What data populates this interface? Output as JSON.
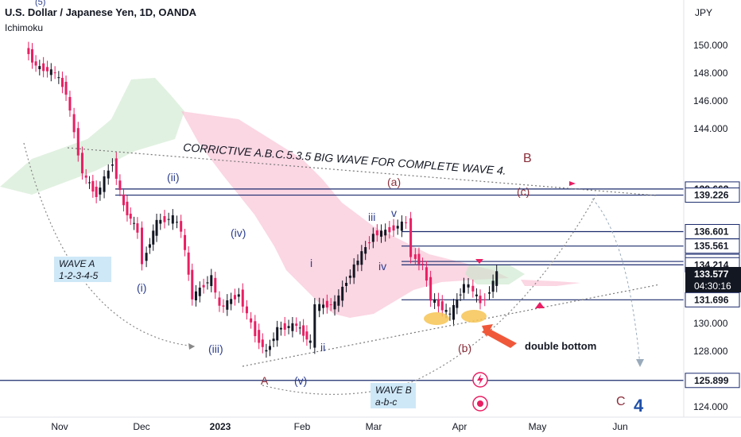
{
  "header": {
    "title": "U.S. Dollar / Japanese Yen, 1D, OANDA",
    "indicator": "Ichimoku"
  },
  "colors": {
    "up_candle": "#131722",
    "down_candle": "#e91e63",
    "cloud_bull": "#c8e6c9",
    "cloud_bear": "#f8bbd0",
    "levels": "#1a2a6c",
    "annotation_blue": "#2c3e8f",
    "annotation_maroon": "#8b2e3a",
    "label_box": "#cfe8f7",
    "current_price_bg": "#131722",
    "highlight": "#f6c453",
    "arrow": "#f0583a"
  },
  "chart_data": {
    "type": "candlestick",
    "symbol": "U.S. Dollar / Japanese Yen",
    "timeframe": "1D",
    "source": "OANDA",
    "indicator": "Ichimoku",
    "currency_axis_label": "JPY",
    "ylim": [
      123.5,
      152.5
    ],
    "y_ticks": [
      124.0,
      126.0,
      128.0,
      130.0,
      132.0,
      134.0,
      136.0,
      138.0,
      140.0,
      142.0,
      144.0,
      146.0,
      148.0,
      150.0
    ],
    "x_ticks": [
      "Nov",
      "Dec",
      "2023",
      "Feb",
      "Mar",
      "Apr",
      "May",
      "Jun"
    ],
    "price_lines": [
      139.663,
      139.226,
      136.601,
      135.561,
      134.453,
      134.214,
      131.696,
      125.899
    ],
    "current_price": "133.577",
    "countdown": "04:30:16",
    "close_path": [
      {
        "date": "2022-10-20",
        "price": 149.8
      },
      {
        "date": "2022-10-24",
        "price": 148.5
      },
      {
        "date": "2022-10-31",
        "price": 148.0
      },
      {
        "date": "2022-11-04",
        "price": 146.6
      },
      {
        "date": "2022-11-10",
        "price": 140.8
      },
      {
        "date": "2022-11-15",
        "price": 139.2
      },
      {
        "date": "2022-11-21",
        "price": 141.6
      },
      {
        "date": "2022-11-25",
        "price": 138.4
      },
      {
        "date": "2022-11-30",
        "price": 136.6
      },
      {
        "date": "2022-12-02",
        "price": 134.4
      },
      {
        "date": "2022-12-07",
        "price": 137.3
      },
      {
        "date": "2022-12-13",
        "price": 137.6
      },
      {
        "date": "2022-12-16",
        "price": 136.7
      },
      {
        "date": "2022-12-20",
        "price": 131.9
      },
      {
        "date": "2022-12-27",
        "price": 133.3
      },
      {
        "date": "2022-12-30",
        "price": 131.1
      },
      {
        "date": "2023-01-06",
        "price": 132.1
      },
      {
        "date": "2023-01-12",
        "price": 129.2
      },
      {
        "date": "2023-01-16",
        "price": 127.9
      },
      {
        "date": "2023-01-20",
        "price": 129.6
      },
      {
        "date": "2023-01-27",
        "price": 129.9
      },
      {
        "date": "2023-02-01",
        "price": 128.6
      },
      {
        "date": "2023-02-03",
        "price": 131.2
      },
      {
        "date": "2023-02-10",
        "price": 131.4
      },
      {
        "date": "2023-02-17",
        "price": 134.1
      },
      {
        "date": "2023-02-24",
        "price": 136.4
      },
      {
        "date": "2023-03-02",
        "price": 136.7
      },
      {
        "date": "2023-03-08",
        "price": 137.3
      },
      {
        "date": "2023-03-10",
        "price": 134.9
      },
      {
        "date": "2023-03-14",
        "price": 134.2
      },
      {
        "date": "2023-03-17",
        "price": 131.8
      },
      {
        "date": "2023-03-24",
        "price": 130.6
      },
      {
        "date": "2023-03-29",
        "price": 132.8
      },
      {
        "date": "2023-03-31",
        "price": 132.7
      },
      {
        "date": "2023-04-04",
        "price": 131.5
      },
      {
        "date": "2023-04-06",
        "price": 131.8
      },
      {
        "date": "2023-04-10",
        "price": 133.6
      }
    ]
  },
  "annotations": {
    "headline": "CORRICTIVE A.B.C.5.3.5 BIG WAVE FOR COMPLETE WAVE 4.",
    "wave_a_box": [
      "WAVE A",
      "1-2-3-4-5"
    ],
    "wave_b_box": [
      "WAVE B",
      "a-b-c"
    ],
    "double_bottom": "double bottom",
    "labels": {
      "top5": "(5)",
      "ii_paren": "(ii)",
      "i_paren": "(i)",
      "iv_paren": "(iv)",
      "iii_paren": "(iii)",
      "v_paren": "(v)",
      "A": "A",
      "i": "i",
      "ii": "ii",
      "iii": "iii",
      "iv": "iv",
      "v": "v",
      "a_paren": "(a)",
      "b_paren": "(b)",
      "c_paren": "(c)",
      "B": "B",
      "C": "C",
      "four": "4"
    }
  }
}
